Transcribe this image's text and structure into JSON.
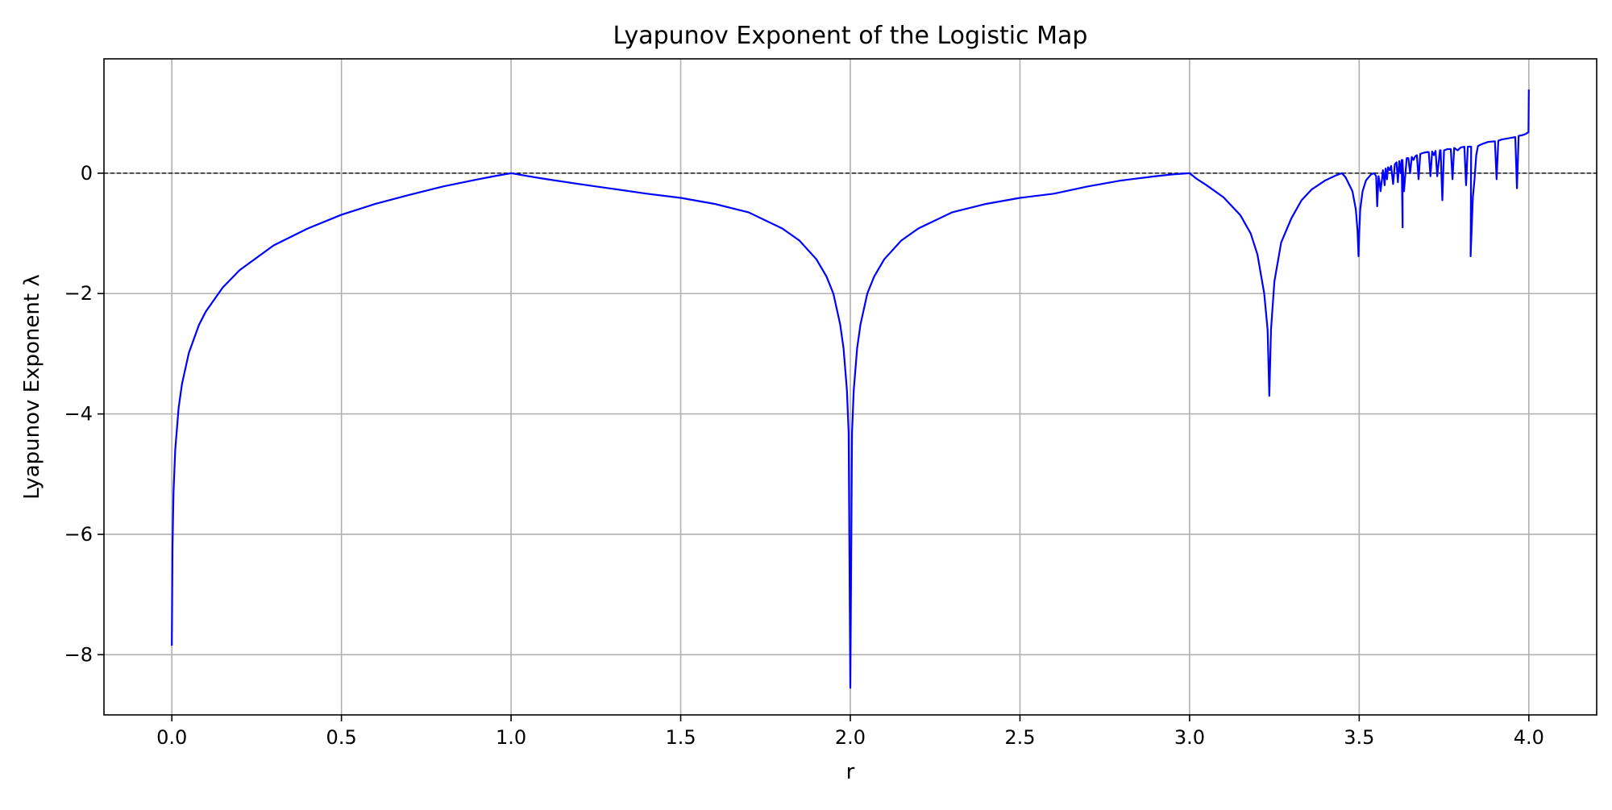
{
  "chart_data": {
    "type": "line",
    "title": "Lyapunov Exponent of the Logistic Map",
    "xlabel": "r",
    "ylabel": "Lyapunov Exponent λ",
    "xlim": [
      -0.2,
      4.2
    ],
    "ylim": [
      -9.0,
      1.9
    ],
    "xticks": [
      0.0,
      0.5,
      1.0,
      1.5,
      2.0,
      2.5,
      3.0,
      3.5,
      4.0
    ],
    "xtick_labels": [
      "0.0",
      "0.5",
      "1.0",
      "1.5",
      "2.0",
      "2.5",
      "3.0",
      "3.5",
      "4.0"
    ],
    "yticks": [
      -8,
      -6,
      -4,
      -2,
      0
    ],
    "ytick_labels": [
      "−8",
      "−6",
      "−4",
      "−2",
      "0"
    ],
    "grid": true,
    "reference_line": {
      "y": 0,
      "style": "dashed",
      "color": "#000000"
    },
    "series": [
      {
        "color": "#0000ff",
        "x": [
          0.0,
          0.002,
          0.005,
          0.01,
          0.02,
          0.03,
          0.05,
          0.08,
          0.1,
          0.15,
          0.2,
          0.3,
          0.4,
          0.5,
          0.6,
          0.7,
          0.8,
          0.9,
          0.95,
          1.0,
          1.05,
          1.1,
          1.2,
          1.3,
          1.4,
          1.5,
          1.6,
          1.7,
          1.8,
          1.85,
          1.9,
          1.93,
          1.95,
          1.97,
          1.98,
          1.99,
          1.995,
          2.0,
          2.005,
          2.01,
          2.02,
          2.03,
          2.05,
          2.07,
          2.1,
          2.15,
          2.2,
          2.3,
          2.4,
          2.5,
          2.6,
          2.7,
          2.8,
          2.9,
          2.95,
          3.0,
          3.02,
          3.05,
          3.1,
          3.15,
          3.18,
          3.2,
          3.22,
          3.23,
          3.235,
          3.24,
          3.25,
          3.27,
          3.3,
          3.33,
          3.36,
          3.4,
          3.43,
          3.449,
          3.46,
          3.48,
          3.49,
          3.495,
          3.498,
          3.5,
          3.503,
          3.51,
          3.52,
          3.535,
          3.544,
          3.55,
          3.553,
          3.557,
          3.56,
          3.563,
          3.567,
          3.57,
          3.575,
          3.578,
          3.582,
          3.585,
          3.59,
          3.594,
          3.6,
          3.605,
          3.61,
          3.614,
          3.618,
          3.622,
          3.625,
          3.628,
          3.6275,
          3.632,
          3.64,
          3.645,
          3.65,
          3.655,
          3.66,
          3.665,
          3.67,
          3.675,
          3.68,
          3.69,
          3.7,
          3.705,
          3.71,
          3.715,
          3.72,
          3.725,
          3.73,
          3.738,
          3.74,
          3.745,
          3.75,
          3.76,
          3.77,
          3.775,
          3.78,
          3.79,
          3.8,
          3.81,
          3.815,
          3.82,
          3.83,
          3.8284,
          3.835,
          3.84,
          3.845,
          3.85,
          3.86,
          3.87,
          3.88,
          3.9,
          3.905,
          3.91,
          3.92,
          3.93,
          3.94,
          3.95,
          3.96,
          3.965,
          3.97,
          3.98,
          3.99,
          3.999,
          4.0
        ],
        "y": [
          -7.85,
          -6.2,
          -5.3,
          -4.6,
          -3.9,
          -3.5,
          -2.99,
          -2.52,
          -2.3,
          -1.9,
          -1.61,
          -1.2,
          -0.92,
          -0.69,
          -0.51,
          -0.36,
          -0.22,
          -0.105,
          -0.05,
          0.0,
          -0.049,
          -0.095,
          -0.18,
          -0.26,
          -0.34,
          -0.41,
          -0.51,
          -0.65,
          -0.92,
          -1.12,
          -1.43,
          -1.72,
          -2.0,
          -2.51,
          -2.91,
          -3.61,
          -4.31,
          -8.55,
          -4.31,
          -3.61,
          -2.91,
          -2.51,
          -2.0,
          -1.72,
          -1.43,
          -1.12,
          -0.92,
          -0.65,
          -0.51,
          -0.41,
          -0.34,
          -0.22,
          -0.12,
          -0.05,
          -0.02,
          0.0,
          -0.09,
          -0.2,
          -0.4,
          -0.7,
          -1.0,
          -1.35,
          -2.0,
          -2.6,
          -3.7,
          -2.6,
          -1.8,
          -1.15,
          -0.75,
          -0.45,
          -0.27,
          -0.12,
          -0.04,
          0.0,
          -0.07,
          -0.3,
          -0.6,
          -0.95,
          -1.38,
          -1.0,
          -0.6,
          -0.3,
          -0.12,
          -0.02,
          0.0,
          -0.05,
          -0.55,
          -0.05,
          -0.15,
          -0.3,
          -0.1,
          0.05,
          -0.2,
          0.08,
          -0.1,
          0.1,
          0.05,
          0.12,
          -0.18,
          0.15,
          0.18,
          -0.15,
          0.2,
          0.0,
          0.22,
          -0.9,
          0.22,
          -0.3,
          0.25,
          0.25,
          0.0,
          0.27,
          0.22,
          0.28,
          0.3,
          -0.1,
          0.32,
          0.34,
          0.35,
          0.35,
          -0.05,
          0.36,
          0.3,
          0.37,
          -0.05,
          0.38,
          0.38,
          -0.45,
          0.38,
          0.4,
          0.4,
          -0.1,
          0.42,
          0.38,
          0.43,
          0.44,
          -0.2,
          0.44,
          0.44,
          -1.38,
          -0.4,
          -0.1,
          0.3,
          0.45,
          0.48,
          0.5,
          0.52,
          0.53,
          -0.1,
          0.54,
          0.56,
          0.57,
          0.58,
          0.59,
          0.6,
          -0.25,
          0.62,
          0.63,
          0.65,
          0.68,
          1.39
        ]
      }
    ]
  }
}
